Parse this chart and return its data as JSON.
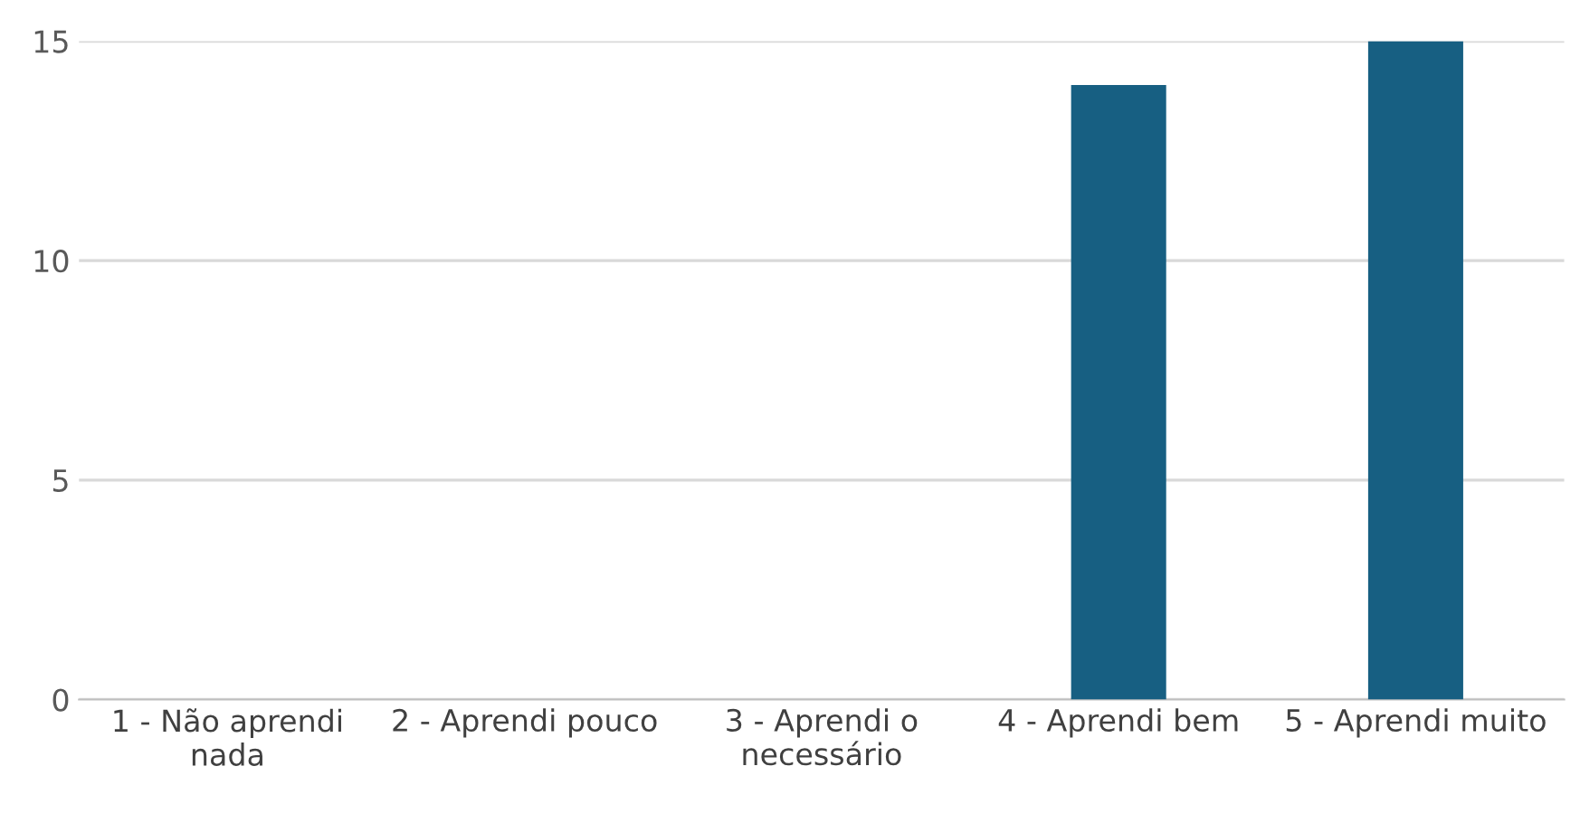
{
  "chart_data": {
    "type": "bar",
    "categories": [
      "1 - Não aprendi nada",
      "2 - Aprendi pouco",
      "3 - Aprendi o necessário",
      "4 - Aprendi bem",
      "5 - Aprendi muito"
    ],
    "values": [
      0,
      0,
      0,
      14,
      15
    ],
    "color": "#175f82",
    "ylim": [
      0,
      15
    ],
    "yticks": [
      0,
      5,
      10,
      15
    ],
    "grid": "y"
  }
}
